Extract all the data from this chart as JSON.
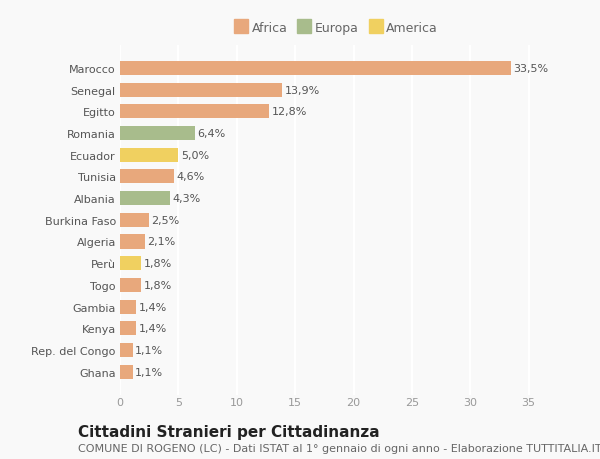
{
  "categories": [
    "Ghana",
    "Rep. del Congo",
    "Kenya",
    "Gambia",
    "Togo",
    "Perù",
    "Algeria",
    "Burkina Faso",
    "Albania",
    "Tunisia",
    "Ecuador",
    "Romania",
    "Egitto",
    "Senegal",
    "Marocco"
  ],
  "values": [
    1.1,
    1.1,
    1.4,
    1.4,
    1.8,
    1.8,
    2.1,
    2.5,
    4.3,
    4.6,
    5.0,
    6.4,
    12.8,
    13.9,
    33.5
  ],
  "labels": [
    "1,1%",
    "1,1%",
    "1,4%",
    "1,4%",
    "1,8%",
    "1,8%",
    "2,1%",
    "2,5%",
    "4,3%",
    "4,6%",
    "5,0%",
    "6,4%",
    "12,8%",
    "13,9%",
    "33,5%"
  ],
  "continents": [
    "Africa",
    "Africa",
    "Africa",
    "Africa",
    "Africa",
    "America",
    "Africa",
    "Africa",
    "Europa",
    "Africa",
    "America",
    "Europa",
    "Africa",
    "Africa",
    "Africa"
  ],
  "colors": {
    "Africa": "#E8A87C",
    "Europa": "#A8BC8C",
    "America": "#F0D060"
  },
  "legend_order": [
    "Africa",
    "Europa",
    "America"
  ],
  "legend_colors": [
    "#E8A87C",
    "#A8BC8C",
    "#F0D060"
  ],
  "legend_labels": [
    "Africa",
    "Europa",
    "America"
  ],
  "xlim": [
    0,
    37
  ],
  "xticks": [
    0,
    5,
    10,
    15,
    20,
    25,
    30,
    35
  ],
  "title": "Cittadini Stranieri per Cittadinanza",
  "subtitle": "COMUNE DI ROGENO (LC) - Dati ISTAT al 1° gennaio di ogni anno - Elaborazione TUTTITALIA.IT",
  "background_color": "#f9f9f9",
  "grid_color": "#ffffff",
  "bar_height": 0.65,
  "title_fontsize": 11,
  "subtitle_fontsize": 8,
  "label_fontsize": 8,
  "tick_fontsize": 8,
  "legend_fontsize": 9,
  "ytick_fontsize": 8
}
